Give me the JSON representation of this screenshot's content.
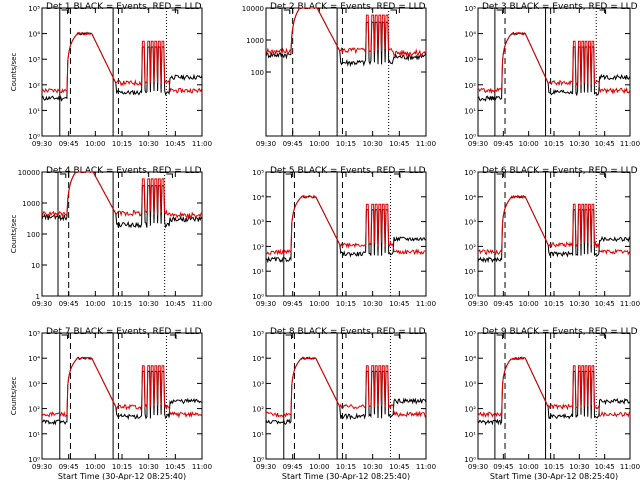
{
  "chart_data": [
    {
      "type": "line",
      "title": "Det 1",
      "title_rest": "BLACK = Events, RED = LLD",
      "ylabel": "Counts/sec",
      "xlabel": "",
      "scale": "log",
      "ylim": [
        1,
        100000
      ],
      "yticks": [
        1,
        10,
        100,
        1000,
        10000,
        100000
      ],
      "ytick_labels": [
        "10⁰",
        "10¹",
        "10²",
        "10³",
        "10⁴",
        "10⁵"
      ],
      "xticks": [
        "09:30",
        "09:45",
        "10:00",
        "10:15",
        "10:30",
        "10:45",
        "11:00"
      ],
      "xlim": [
        570,
        660
      ],
      "solid_markers": [
        580,
        610
      ],
      "dashed_markers": [
        586,
        613
      ],
      "dotted_markers": [
        640
      ],
      "bracket_markers": [
        581,
        643
      ],
      "peak": 10000,
      "base": 100,
      "series": [
        {
          "name": "BLACK = Events",
          "color": "#000000",
          "level_before": 30,
          "level_after": 200
        },
        {
          "name": "RED = LLD",
          "color": "#e00000",
          "level_before": 60,
          "level_after": 60
        }
      ]
    },
    {
      "type": "line",
      "title": "Det 2",
      "title_rest": "BLACK = Events, RED = LLD",
      "ylabel": "",
      "xlabel": "",
      "scale": "linear-log",
      "ylim": [
        1,
        10000
      ],
      "yticks": [
        100,
        1000,
        10000
      ],
      "ytick_labels": [
        "100",
        "1000",
        "10000"
      ],
      "xticks": [
        "09:30",
        "09:45",
        "10:00",
        "10:15",
        "10:30",
        "10:45",
        "11:00"
      ],
      "xlim": [
        570,
        660
      ],
      "solid_markers": [
        579,
        610
      ],
      "dashed_markers": [
        585,
        613
      ],
      "dotted_markers": [
        639
      ],
      "bracket_markers": [
        580,
        640
      ],
      "peak": 12000,
      "base": 400,
      "series": [
        {
          "name": "BLACK = Events",
          "color": "#000000",
          "level_before": 350,
          "level_after": 300
        },
        {
          "name": "RED = LLD",
          "color": "#e00000",
          "level_before": 450,
          "level_after": 400
        }
      ]
    },
    {
      "type": "line",
      "title": "Det 3",
      "title_rest": "BLACK = Events, RED = LLD",
      "ylabel": "",
      "xlabel": "",
      "scale": "log",
      "ylim": [
        1,
        100000
      ],
      "yticks": [
        1,
        10,
        100,
        1000,
        10000,
        100000
      ],
      "ytick_labels": [
        "10⁰",
        "10¹",
        "10²",
        "10³",
        "10⁴",
        "10⁵"
      ],
      "xticks": [
        "09:30",
        "09:45",
        "10:00",
        "10:15",
        "10:30",
        "10:45",
        "11:00"
      ],
      "xlim": [
        570,
        660
      ],
      "solid_markers": [
        580,
        610
      ],
      "dashed_markers": [
        586,
        613
      ],
      "dotted_markers": [
        640
      ],
      "bracket_markers": [
        581,
        642
      ],
      "peak": 10000,
      "base": 100,
      "series": [
        {
          "name": "BLACK = Events",
          "color": "#000000",
          "level_before": 30,
          "level_after": 200
        },
        {
          "name": "RED = LLD",
          "color": "#e00000",
          "level_before": 60,
          "level_after": 60
        }
      ]
    },
    {
      "type": "line",
      "title": "Det 4",
      "title_rest": "BLACK = Events, RED = LLD",
      "ylabel": "Counts/sec",
      "xlabel": "",
      "scale": "linear-log",
      "ylim": [
        1,
        10000
      ],
      "yticks": [
        1,
        10,
        100,
        1000,
        10000
      ],
      "ytick_labels": [
        "1",
        "10",
        "100",
        "1000",
        "10000"
      ],
      "xticks": [
        "09:30",
        "09:45",
        "10:00",
        "10:15",
        "10:30",
        "10:45",
        "11:00"
      ],
      "xlim": [
        570,
        660
      ],
      "solid_markers": [
        579,
        610
      ],
      "dashed_markers": [
        585,
        613
      ],
      "dotted_markers": [
        639
      ],
      "bracket_markers": [
        580,
        640
      ],
      "peak": 12000,
      "base": 400,
      "series": [
        {
          "name": "BLACK = Events",
          "color": "#000000",
          "level_before": 350,
          "level_after": 300
        },
        {
          "name": "RED = LLD",
          "color": "#e00000",
          "level_before": 450,
          "level_after": 400
        }
      ]
    },
    {
      "type": "line",
      "title": "Det 5",
      "title_rest": "BLACK = Events, RED = LLD",
      "ylabel": "",
      "xlabel": "",
      "scale": "log",
      "ylim": [
        1,
        100000
      ],
      "yticks": [
        1,
        10,
        100,
        1000,
        10000,
        100000
      ],
      "ytick_labels": [
        "10⁰",
        "10¹",
        "10²",
        "10³",
        "10⁴",
        "10⁵"
      ],
      "xticks": [
        "09:30",
        "09:45",
        "10:00",
        "10:15",
        "10:30",
        "10:45",
        "11:00"
      ],
      "xlim": [
        570,
        660
      ],
      "solid_markers": [
        580,
        610
      ],
      "dashed_markers": [
        586,
        613
      ],
      "dotted_markers": [
        640
      ],
      "bracket_markers": [
        581,
        642
      ],
      "peak": 10000,
      "base": 100,
      "series": [
        {
          "name": "BLACK = Events",
          "color": "#000000",
          "level_before": 30,
          "level_after": 200
        },
        {
          "name": "RED = LLD",
          "color": "#e00000",
          "level_before": 60,
          "level_after": 60
        }
      ]
    },
    {
      "type": "line",
      "title": "Det 6",
      "title_rest": "BLACK = Events, RED = LLD",
      "ylabel": "",
      "xlabel": "",
      "scale": "log",
      "ylim": [
        1,
        100000
      ],
      "yticks": [
        1,
        10,
        100,
        1000,
        10000,
        100000
      ],
      "ytick_labels": [
        "10⁰",
        "10¹",
        "10²",
        "10³",
        "10⁴",
        "10⁵"
      ],
      "xticks": [
        "09:30",
        "09:45",
        "10:00",
        "10:15",
        "10:30",
        "10:45",
        "11:00"
      ],
      "xlim": [
        570,
        660
      ],
      "solid_markers": [
        580,
        610
      ],
      "dashed_markers": [
        586,
        613
      ],
      "dotted_markers": [
        640
      ],
      "bracket_markers": [
        581,
        642
      ],
      "peak": 10000,
      "base": 100,
      "series": [
        {
          "name": "BLACK = Events",
          "color": "#000000",
          "level_before": 30,
          "level_after": 200
        },
        {
          "name": "RED = LLD",
          "color": "#e00000",
          "level_before": 60,
          "level_after": 60
        }
      ]
    },
    {
      "type": "line",
      "title": "Det 7",
      "title_rest": "BLACK = Events, RED = LLD",
      "ylabel": "Counts/sec",
      "xlabel": "Start Time (30-Apr-12 08:25:40)",
      "scale": "log",
      "ylim": [
        1,
        100000
      ],
      "yticks": [
        1,
        10,
        100,
        1000,
        10000,
        100000
      ],
      "ytick_labels": [
        "10⁰",
        "10¹",
        "10²",
        "10³",
        "10⁴",
        "10⁵"
      ],
      "xticks": [
        "09:30",
        "09:45",
        "10:00",
        "10:15",
        "10:30",
        "10:45",
        "11:00"
      ],
      "xlim": [
        570,
        660
      ],
      "solid_markers": [
        580,
        610
      ],
      "dashed_markers": [
        586,
        613
      ],
      "dotted_markers": [
        640
      ],
      "bracket_markers": [
        581,
        642
      ],
      "peak": 10000,
      "base": 100,
      "series": [
        {
          "name": "BLACK = Events",
          "color": "#000000",
          "level_before": 30,
          "level_after": 200
        },
        {
          "name": "RED = LLD",
          "color": "#e00000",
          "level_before": 60,
          "level_after": 60
        }
      ]
    },
    {
      "type": "line",
      "title": "Det 8",
      "title_rest": "BLACK = Events, RED = LLD",
      "ylabel": "",
      "xlabel": "Start Time (30-Apr-12 08:25:40)",
      "scale": "log",
      "ylim": [
        1,
        100000
      ],
      "yticks": [
        1,
        10,
        100,
        1000,
        10000,
        100000
      ],
      "ytick_labels": [
        "10⁰",
        "10¹",
        "10²",
        "10³",
        "10⁴",
        "10⁵"
      ],
      "xticks": [
        "09:30",
        "09:45",
        "10:00",
        "10:15",
        "10:30",
        "10:45",
        "11:00"
      ],
      "xlim": [
        570,
        660
      ],
      "solid_markers": [
        580,
        610
      ],
      "dashed_markers": [
        586,
        613
      ],
      "dotted_markers": [
        640
      ],
      "bracket_markers": [
        581,
        642
      ],
      "peak": 10000,
      "base": 100,
      "series": [
        {
          "name": "BLACK = Events",
          "color": "#000000",
          "level_before": 30,
          "level_after": 200
        },
        {
          "name": "RED = LLD",
          "color": "#e00000",
          "level_before": 60,
          "level_after": 60
        }
      ]
    },
    {
      "type": "line",
      "title": "Det 9",
      "title_rest": "BLACK = Events, RED = LLD",
      "ylabel": "",
      "xlabel": "Start Time (30-Apr-12 08:25:40)",
      "scale": "log",
      "ylim": [
        1,
        100000
      ],
      "yticks": [
        1,
        10,
        100,
        1000,
        10000,
        100000
      ],
      "ytick_labels": [
        "10⁰",
        "10¹",
        "10²",
        "10³",
        "10⁴",
        "10⁵"
      ],
      "xticks": [
        "09:30",
        "09:45",
        "10:00",
        "10:15",
        "10:30",
        "10:45",
        "11:00"
      ],
      "xlim": [
        570,
        660
      ],
      "solid_markers": [
        580,
        610
      ],
      "dashed_markers": [
        586,
        613
      ],
      "dotted_markers": [
        640
      ],
      "bracket_markers": [
        581,
        642
      ],
      "peak": 10000,
      "base": 100,
      "series": [
        {
          "name": "BLACK = Events",
          "color": "#000000",
          "level_before": 30,
          "level_after": 200
        },
        {
          "name": "RED = LLD",
          "color": "#e00000",
          "level_before": 60,
          "level_after": 60
        }
      ]
    }
  ]
}
